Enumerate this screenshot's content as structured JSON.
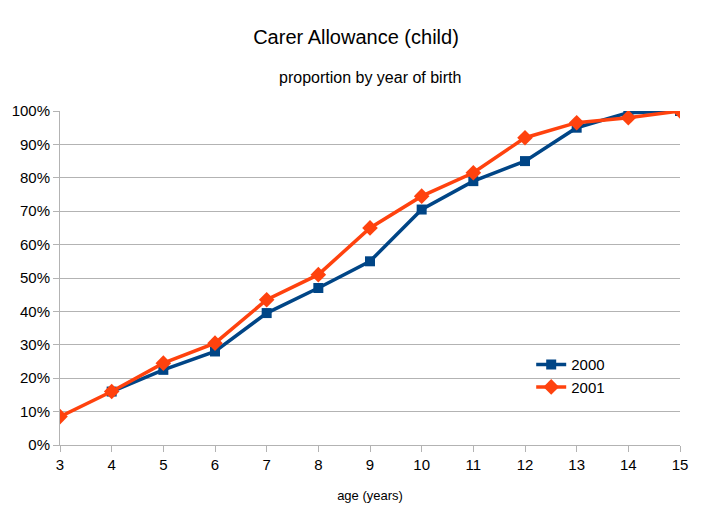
{
  "chart_data": {
    "type": "line",
    "title": "Carer Allowance (child)",
    "subtitle": "proportion by year of birth",
    "x_label": "age (years)",
    "x": [
      3,
      4,
      5,
      6,
      7,
      8,
      9,
      10,
      11,
      12,
      13,
      14,
      15
    ],
    "series": [
      {
        "name": "2000",
        "color": "#004586",
        "marker": "square",
        "line_style": "solid",
        "values": [
          null,
          16,
          22.5,
          28,
          39.5,
          47,
          55,
          70.5,
          79,
          85,
          95,
          99.5,
          100
        ]
      },
      {
        "name": "2001",
        "color": "#ff420e",
        "marker": "diamond",
        "line_style": "solid",
        "values": [
          8.5,
          16,
          24.5,
          30.5,
          43.5,
          51,
          65,
          74.5,
          81.5,
          92,
          96.5,
          98,
          100
        ]
      }
    ],
    "xlim": [
      3,
      15
    ],
    "xticks": [
      3,
      4,
      5,
      6,
      7,
      8,
      9,
      10,
      11,
      12,
      13,
      14,
      15
    ],
    "ylim": [
      0,
      100
    ],
    "yticks": [
      {
        "value": 0,
        "label": "0%"
      },
      {
        "value": 10,
        "label": "10%"
      },
      {
        "value": 20,
        "label": "20%"
      },
      {
        "value": 30,
        "label": "30%"
      },
      {
        "value": 40,
        "label": "40%"
      },
      {
        "value": 50,
        "label": "50%"
      },
      {
        "value": 60,
        "label": "60%"
      },
      {
        "value": 70,
        "label": "70%"
      },
      {
        "value": 80,
        "label": "80%"
      },
      {
        "value": 90,
        "label": "90%"
      },
      {
        "value": 100,
        "label": "100%"
      }
    ],
    "grid": true,
    "legend": "lower right"
  }
}
